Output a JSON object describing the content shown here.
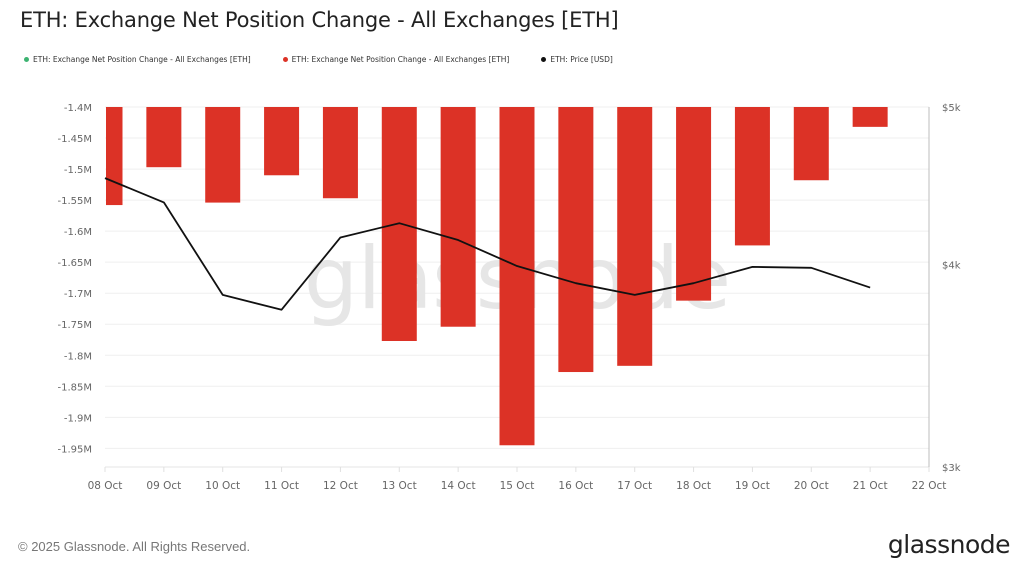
{
  "title": "ETH: Exchange Net Position Change - All Exchanges [ETH]",
  "legend": [
    {
      "label": "ETH: Exchange Net Position Change - All Exchanges [ETH]",
      "color": "#3cb371"
    },
    {
      "label": "ETH: Exchange Net Position Change - All Exchanges [ETH]",
      "color": "#dc3226"
    },
    {
      "label": "ETH: Price [USD]",
      "color": "#111111"
    }
  ],
  "watermark": "glassnode",
  "footer": {
    "copyright": "© 2025 Glassnode. All Rights Reserved.",
    "logo": "glassnode"
  },
  "chart_data": {
    "type": "bar",
    "title": "ETH: Exchange Net Position Change - All Exchanges [ETH]",
    "xlabel": "",
    "ylabel": "",
    "x_ticks": [
      "08 Oct",
      "09 Oct",
      "10 Oct",
      "11 Oct",
      "12 Oct",
      "13 Oct",
      "14 Oct",
      "15 Oct",
      "16 Oct",
      "17 Oct",
      "18 Oct",
      "19 Oct",
      "20 Oct",
      "21 Oct",
      "22 Oct"
    ],
    "categories": [
      "08 Oct",
      "09 Oct",
      "10 Oct",
      "11 Oct",
      "12 Oct",
      "13 Oct",
      "14 Oct",
      "15 Oct",
      "16 Oct",
      "17 Oct",
      "18 Oct",
      "19 Oct",
      "20 Oct",
      "21 Oct"
    ],
    "y_left": {
      "ticks": [
        -1.4,
        -1.45,
        -1.5,
        -1.55,
        -1.6,
        -1.65,
        -1.7,
        -1.75,
        -1.8,
        -1.85,
        -1.9,
        -1.95
      ],
      "tick_labels": [
        "-1.4M",
        "-1.45M",
        "-1.5M",
        "-1.55M",
        "-1.6M",
        "-1.65M",
        "-1.7M",
        "-1.75M",
        "-1.8M",
        "-1.85M",
        "-1.9M",
        "-1.95M"
      ],
      "range": [
        -1.98,
        -1.4
      ],
      "unit": "M ETH"
    },
    "y_right": {
      "scale": "log",
      "ticks": [
        5000,
        4000,
        3000
      ],
      "tick_labels": [
        "$5k",
        "$4k",
        "$3k"
      ],
      "range": [
        3000,
        5000
      ],
      "unit": "USD"
    },
    "grid": true,
    "legend_position": "top-left",
    "series": [
      {
        "name": "ETH: Exchange Net Position Change - All Exchanges [ETH]",
        "type": "bar",
        "axis": "left",
        "color": "#dc3226",
        "values": [
          -1.558,
          -1.497,
          -1.554,
          -1.51,
          -1.547,
          -1.777,
          -1.754,
          -1.945,
          -1.827,
          -1.817,
          -1.712,
          -1.623,
          -1.518,
          -1.432
        ]
      },
      {
        "name": "ETH: Price [USD]",
        "type": "line",
        "axis": "right",
        "color": "#111111",
        "values": [
          4520,
          4367,
          3830,
          3750,
          4155,
          4240,
          4140,
          3990,
          3894,
          3830,
          3894,
          3985,
          3980,
          3870
        ]
      }
    ]
  }
}
